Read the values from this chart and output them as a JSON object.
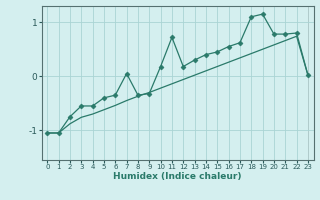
{
  "xlabel": "Humidex (Indice chaleur)",
  "ylabel": "",
  "background_color": "#d4efef",
  "grid_color": "#aad4d4",
  "line_color": "#2a7a6a",
  "xlim": [
    -0.5,
    23.5
  ],
  "ylim": [
    -1.55,
    1.3
  ],
  "yticks": [
    -1,
    0,
    1
  ],
  "xticks": [
    0,
    1,
    2,
    3,
    4,
    5,
    6,
    7,
    8,
    9,
    10,
    11,
    12,
    13,
    14,
    15,
    16,
    17,
    18,
    19,
    20,
    21,
    22,
    23
  ],
  "series1_x": [
    0,
    1,
    2,
    3,
    4,
    5,
    6,
    7,
    8,
    9,
    10,
    11,
    12,
    13,
    14,
    15,
    16,
    17,
    18,
    19,
    20,
    21,
    22,
    23
  ],
  "series1_y": [
    -1.05,
    -1.05,
    -0.88,
    -0.76,
    -0.7,
    -0.62,
    -0.54,
    -0.45,
    -0.37,
    -0.3,
    -0.22,
    -0.14,
    -0.06,
    0.02,
    0.1,
    0.18,
    0.26,
    0.34,
    0.42,
    0.5,
    0.58,
    0.66,
    0.74,
    0.02
  ],
  "series2_x": [
    0,
    1,
    2,
    3,
    4,
    5,
    6,
    7,
    8,
    9,
    10,
    11,
    12,
    13,
    14,
    15,
    16,
    17,
    18,
    19,
    20,
    21,
    22,
    23
  ],
  "series2_y": [
    -1.05,
    -1.05,
    -0.75,
    -0.55,
    -0.55,
    -0.4,
    -0.35,
    0.05,
    -0.35,
    -0.32,
    0.18,
    0.72,
    0.18,
    0.3,
    0.4,
    0.45,
    0.55,
    0.62,
    1.1,
    1.15,
    0.78,
    0.78,
    0.8,
    0.02
  ]
}
